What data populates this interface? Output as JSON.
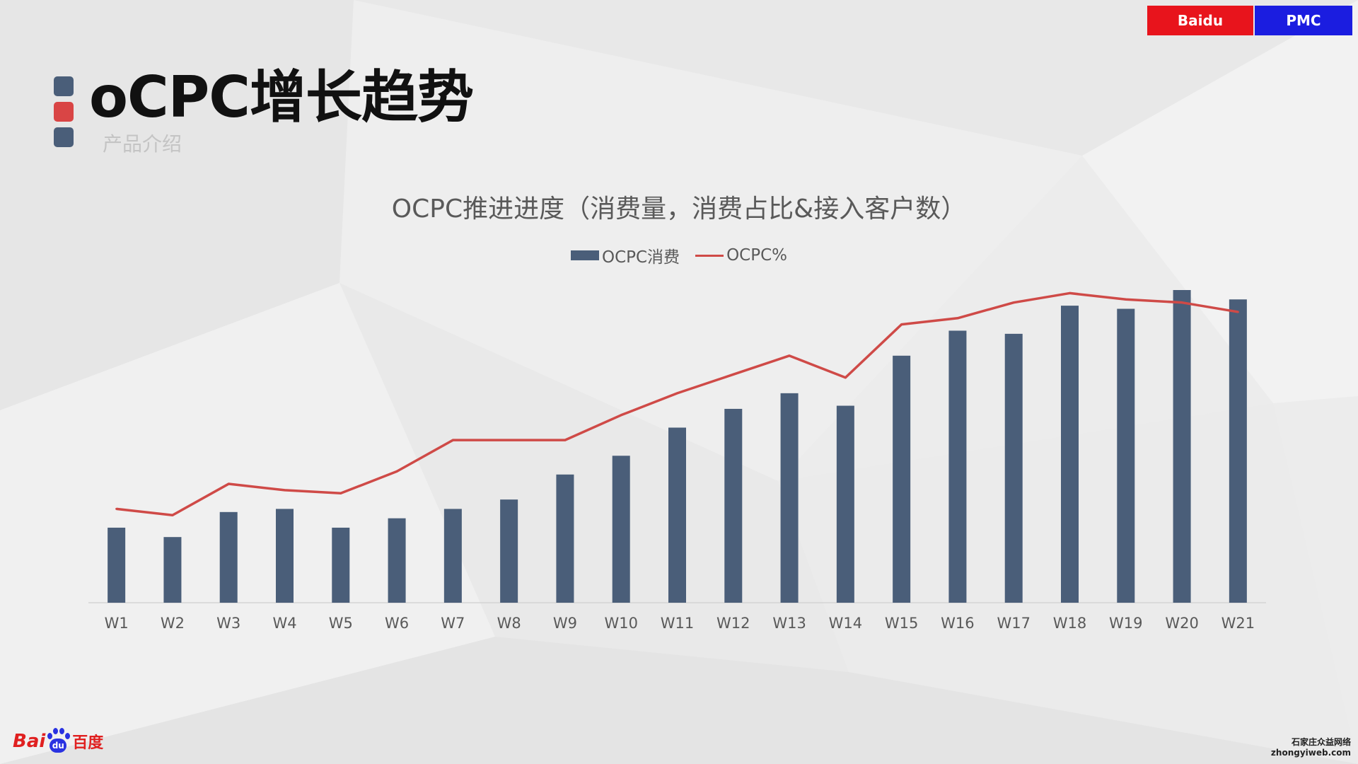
{
  "header": {
    "tag_left": "Baidu",
    "tag_right": "PMC",
    "title": "oCPC增长趋势",
    "subtitle": "产品介绍"
  },
  "colors": {
    "tag_left_bg": "#e8141c",
    "tag_right_bg": "#1b1de0",
    "square_dark": "#4a5e79",
    "square_red": "#d94545",
    "bar": "#4a5e79",
    "line": "#cf4a47",
    "axis_text": "#595959"
  },
  "chart_data": {
    "type": "bar",
    "title": "OCPC推进进度（消费量，消费占比&接入客户数）",
    "categories": [
      "W1",
      "W2",
      "W3",
      "W4",
      "W5",
      "W6",
      "W7",
      "W8",
      "W9",
      "W10",
      "W11",
      "W12",
      "W13",
      "W14",
      "W15",
      "W16",
      "W17",
      "W18",
      "W19",
      "W20",
      "W21"
    ],
    "series": [
      {
        "name": "OCPC消费",
        "type": "bar",
        "values": [
          24,
          21,
          29,
          30,
          24,
          27,
          30,
          33,
          41,
          47,
          56,
          62,
          67,
          63,
          79,
          87,
          86,
          95,
          94,
          100,
          97
        ]
      },
      {
        "name": "OCPC%",
        "type": "line",
        "values": [
          30,
          28,
          38,
          36,
          35,
          42,
          52,
          52,
          52,
          60,
          67,
          73,
          79,
          72,
          89,
          91,
          96,
          99,
          97,
          96,
          93
        ]
      }
    ],
    "ylim": [
      0,
      100
    ],
    "legend": "top-center",
    "grid": false,
    "y_axis_visible": false
  },
  "footer": {
    "logo_bai": "Bai",
    "logo_du": "du",
    "logo_cn": "百度",
    "watermark_line1": "石家庄众益网络",
    "watermark_line2": "zhongyiweb.com"
  }
}
